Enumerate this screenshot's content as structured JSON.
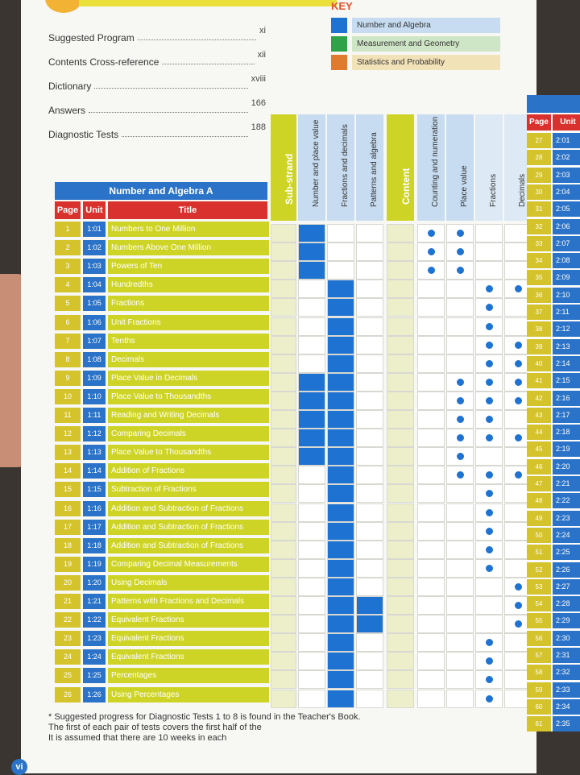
{
  "contents": [
    {
      "label": "Suggested Program",
      "page": "xi"
    },
    {
      "label": "Contents Cross-reference",
      "page": "xii"
    },
    {
      "label": "Dictionary",
      "page": "xviii"
    },
    {
      "label": "Answers",
      "page": "166"
    },
    {
      "label": "Diagnostic Tests",
      "page": "188"
    }
  ],
  "key": {
    "title": "KEY",
    "items": [
      {
        "label": "Number and Algebra",
        "color": "#1e73d2",
        "bg": "#c7dcf0"
      },
      {
        "label": "Measurement and Geometry",
        "color": "#2fa24a",
        "bg": "#cfe6c6"
      },
      {
        "label": "Statistics and Probability",
        "color": "#e07a2e",
        "bg": "#f2e2b8"
      }
    ]
  },
  "table": {
    "title": "Number and Algebra A",
    "col_page": "Page",
    "col_unit": "Unit",
    "col_title": "Title",
    "rows": [
      {
        "page": "1",
        "unit": "1:01",
        "title": "Numbers to One Million"
      },
      {
        "page": "2",
        "unit": "1:02",
        "title": "Numbers Above One Million"
      },
      {
        "page": "3",
        "unit": "1:03",
        "title": "Powers of Ten"
      },
      {
        "page": "4",
        "unit": "1:04",
        "title": "Hundredths"
      },
      {
        "page": "5",
        "unit": "1:05",
        "title": "Fractions"
      },
      {
        "page": "6",
        "unit": "1:06",
        "title": "Unit Fractions"
      },
      {
        "page": "7",
        "unit": "1:07",
        "title": "Tenths"
      },
      {
        "page": "8",
        "unit": "1:08",
        "title": "Decimals"
      },
      {
        "page": "9",
        "unit": "1:09",
        "title": "Place Value in Decimals"
      },
      {
        "page": "10",
        "unit": "1:10",
        "title": "Place Value to Thousandths"
      },
      {
        "page": "11",
        "unit": "1:11",
        "title": "Reading and Writing Decimals"
      },
      {
        "page": "12",
        "unit": "1:12",
        "title": "Comparing Decimals"
      },
      {
        "page": "13",
        "unit": "1:13",
        "title": "Place Value to Thousandths"
      },
      {
        "page": "14",
        "unit": "1:14",
        "title": "Addition of Fractions"
      },
      {
        "page": "15",
        "unit": "1:15",
        "title": "Subtraction of Fractions"
      },
      {
        "page": "16",
        "unit": "1:16",
        "title": "Addition and Subtraction of Fractions"
      },
      {
        "page": "17",
        "unit": "1:17",
        "title": "Addition and Subtraction of Fractions"
      },
      {
        "page": "18",
        "unit": "1:18",
        "title": "Addition and Subtraction of Fractions"
      },
      {
        "page": "19",
        "unit": "1:19",
        "title": "Comparing Decimal Measurements"
      },
      {
        "page": "20",
        "unit": "1:20",
        "title": "Using Decimals"
      },
      {
        "page": "21",
        "unit": "1:21",
        "title": "Patterns with Fractions and Decimals"
      },
      {
        "page": "22",
        "unit": "1:22",
        "title": "Equivalent Fractions"
      },
      {
        "page": "23",
        "unit": "1:23",
        "title": "Equivalent Fractions"
      },
      {
        "page": "24",
        "unit": "1:24",
        "title": "Equivalent Fractions"
      },
      {
        "page": "25",
        "unit": "1:25",
        "title": "Percentages"
      },
      {
        "page": "26",
        "unit": "1:26",
        "title": "Using Percentages"
      }
    ]
  },
  "grid_headers": [
    "Sub-strand",
    "Number and place value",
    "Fractions and decimals",
    "Patterns and algebra",
    "Content",
    "Counting and numeration",
    "Place value",
    "Fractions",
    "Decimals"
  ],
  "grid_fill": {
    "number_place_value": [
      1,
      1,
      1,
      0,
      0,
      0,
      0,
      0,
      1,
      1,
      1,
      1,
      1,
      0,
      0,
      0,
      0,
      0,
      0,
      0,
      0,
      0,
      0,
      0,
      0,
      0
    ],
    "fractions_decimals": [
      0,
      0,
      0,
      1,
      1,
      1,
      1,
      1,
      1,
      1,
      1,
      1,
      1,
      1,
      1,
      1,
      1,
      1,
      1,
      1,
      1,
      1,
      1,
      1,
      1,
      1
    ],
    "patterns_algebra": [
      0,
      0,
      0,
      0,
      0,
      0,
      0,
      0,
      0,
      0,
      0,
      0,
      0,
      0,
      0,
      0,
      0,
      0,
      0,
      0,
      1,
      1,
      0,
      0,
      0,
      0
    ],
    "counting_dots": [
      1,
      1,
      1,
      0,
      0,
      0,
      0,
      0,
      0,
      0,
      0,
      0,
      0,
      0,
      0,
      0,
      0,
      0,
      0,
      0,
      0,
      0,
      0,
      0,
      0,
      0
    ],
    "place_value_dots": [
      1,
      1,
      1,
      0,
      0,
      0,
      0,
      0,
      1,
      1,
      1,
      1,
      1,
      1,
      0,
      0,
      0,
      0,
      0,
      0,
      0,
      0,
      0,
      0,
      0,
      0
    ],
    "fractions_dots": [
      0,
      0,
      0,
      1,
      1,
      1,
      1,
      1,
      1,
      1,
      1,
      1,
      0,
      1,
      1,
      1,
      1,
      1,
      1,
      0,
      0,
      0,
      1,
      1,
      1,
      1
    ],
    "decimals_dots": [
      0,
      0,
      0,
      1,
      0,
      0,
      1,
      1,
      1,
      1,
      0,
      1,
      0,
      1,
      0,
      0,
      0,
      0,
      0,
      1,
      1,
      1,
      0,
      0,
      0,
      0
    ]
  },
  "footnote": [
    "* Suggested progress for Diagnostic Tests 1 to 8 is found in the Teacher's Book.",
    "The first of each pair of tests covers the first half of the",
    "It is assumed that there are 10 weeks in each"
  ],
  "page_number": "vi",
  "right_table": {
    "col_page": "Page",
    "col_unit": "Unit",
    "rows": [
      {
        "page": "27",
        "unit": "2:01"
      },
      {
        "page": "28",
        "unit": "2:02"
      },
      {
        "page": "29",
        "unit": "2:03"
      },
      {
        "page": "30",
        "unit": "2:04"
      },
      {
        "page": "31",
        "unit": "2:05"
      },
      {
        "page": "32",
        "unit": "2:06"
      },
      {
        "page": "33",
        "unit": "2:07"
      },
      {
        "page": "34",
        "unit": "2:08"
      },
      {
        "page": "35",
        "unit": "2:09"
      },
      {
        "page": "36",
        "unit": "2:10"
      },
      {
        "page": "37",
        "unit": "2:11"
      },
      {
        "page": "38",
        "unit": "2:12"
      },
      {
        "page": "39",
        "unit": "2:13"
      },
      {
        "page": "40",
        "unit": "2:14"
      },
      {
        "page": "41",
        "unit": "2:15"
      },
      {
        "page": "42",
        "unit": "2:16"
      },
      {
        "page": "43",
        "unit": "2:17"
      },
      {
        "page": "44",
        "unit": "2:18"
      },
      {
        "page": "45",
        "unit": "2:19"
      },
      {
        "page": "46",
        "unit": "2:20"
      },
      {
        "page": "47",
        "unit": "2:21"
      },
      {
        "page": "48",
        "unit": "2:22"
      },
      {
        "page": "49",
        "unit": "2:23"
      },
      {
        "page": "50",
        "unit": "2:24"
      },
      {
        "page": "51",
        "unit": "2:25"
      },
      {
        "page": "52",
        "unit": "2:26"
      },
      {
        "page": "53",
        "unit": "2:27"
      },
      {
        "page": "54",
        "unit": "2:28"
      },
      {
        "page": "55",
        "unit": "2:29"
      },
      {
        "page": "56",
        "unit": "2:30"
      },
      {
        "page": "57",
        "unit": "2:31"
      },
      {
        "page": "58",
        "unit": "2:32"
      },
      {
        "page": "59",
        "unit": "2:33"
      },
      {
        "page": "60",
        "unit": "2:34"
      },
      {
        "page": "61",
        "unit": "2:35"
      }
    ]
  }
}
